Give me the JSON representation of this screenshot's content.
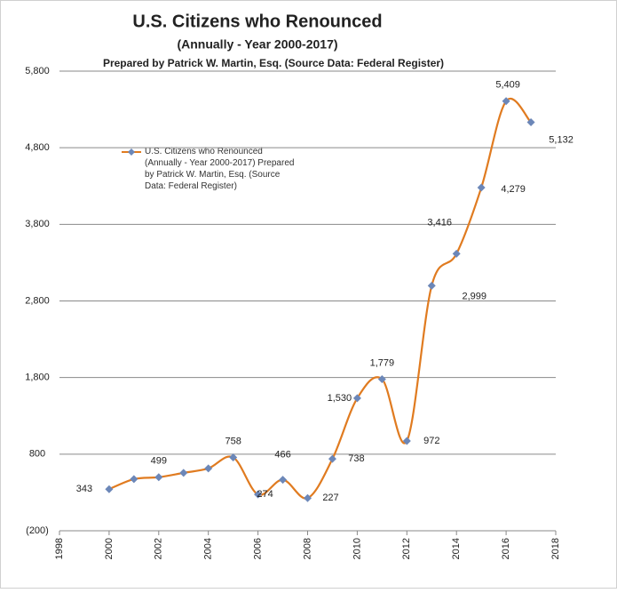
{
  "chart_data": {
    "type": "line",
    "title": "U.S. Citizens who Renounced",
    "subtitle": "(Annually - Year 2000-2017)",
    "caption": "Prepared by Patrick W. Martin, Esq. (Source Data: Federal Register)",
    "x": [
      2000,
      2001,
      2002,
      2003,
      2004,
      2005,
      2006,
      2007,
      2008,
      2009,
      2010,
      2011,
      2012,
      2013,
      2014,
      2015,
      2016,
      2017
    ],
    "series": [
      {
        "name": "U.S. Citizens who Renounced (Annually - Year 2000-2017) Prepared by Patrick W. Martin, Esq. (Source Data: Federal Register)",
        "color": "#e07b20",
        "marker_color": "#6c87b8",
        "values": [
          343,
          474,
          499,
          556,
          614,
          758,
          274,
          466,
          227,
          738,
          1530,
          1779,
          972,
          2999,
          3416,
          4279,
          5409,
          5132
        ],
        "value_labels": [
          "343",
          null,
          "499",
          null,
          null,
          "758",
          "274",
          "466",
          "227",
          "738",
          "1,530",
          "1,779",
          "972",
          "2,999",
          "3,416",
          "4,279",
          "5,409",
          "5,132"
        ]
      }
    ],
    "xlim": [
      1998,
      2018
    ],
    "xticks": [
      1998,
      2000,
      2002,
      2004,
      2006,
      2008,
      2010,
      2012,
      2014,
      2016,
      2018
    ],
    "ylim": [
      -200,
      5800
    ],
    "yticks": [
      {
        "value": -200,
        "label": "(200)"
      },
      800,
      {
        "value": 1800,
        "label": "1,800"
      },
      {
        "value": 2800,
        "label": "2,800"
      },
      {
        "value": 3800,
        "label": "3,800"
      },
      {
        "value": 4800,
        "label": "4,800"
      },
      {
        "value": 5800,
        "label": "5,800"
      }
    ],
    "grid": true
  }
}
